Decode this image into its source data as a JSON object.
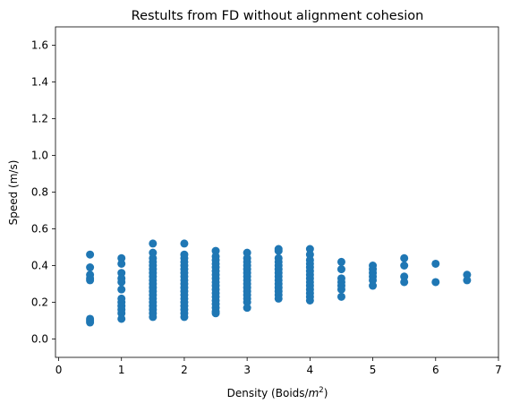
{
  "chart_data": {
    "type": "scatter",
    "title": "Restults from FD without alignment cohesion",
    "xlabel_prefix": "Density (Boids/",
    "xlabel_base": "m",
    "xlabel_exp": "2",
    "xlabel_suffix": ")",
    "ylabel": "Speed (m/s)",
    "xlim": [
      -0.05,
      7.0
    ],
    "ylim": [
      -0.1,
      1.7
    ],
    "xticks": [
      0,
      1,
      2,
      3,
      4,
      5,
      6,
      7
    ],
    "xtick_labels": [
      "0",
      "1",
      "2",
      "3",
      "4",
      "5",
      "6",
      "7"
    ],
    "yticks": [
      0.0,
      0.2,
      0.4,
      0.6,
      0.8,
      1.0,
      1.2,
      1.4,
      1.6
    ],
    "ytick_labels": [
      "0.0",
      "0.2",
      "0.4",
      "0.6",
      "0.8",
      "1.0",
      "1.2",
      "1.4",
      "1.6"
    ],
    "grid": false,
    "marker_color": "#1f77b4",
    "series": [
      {
        "points": [
          [
            0.5,
            0.46
          ],
          [
            0.5,
            0.39
          ],
          [
            0.5,
            0.35
          ],
          [
            0.5,
            0.33
          ],
          [
            0.5,
            0.32
          ],
          [
            0.5,
            0.11
          ],
          [
            0.5,
            0.1
          ],
          [
            0.5,
            0.09
          ],
          [
            1,
            0.44
          ],
          [
            1,
            0.41
          ],
          [
            1,
            0.36
          ],
          [
            1,
            0.33
          ],
          [
            1,
            0.31
          ],
          [
            1,
            0.27
          ],
          [
            1,
            0.22
          ],
          [
            1,
            0.2
          ],
          [
            1,
            0.18
          ],
          [
            1,
            0.16
          ],
          [
            1,
            0.14
          ],
          [
            1,
            0.11
          ],
          [
            1.5,
            0.52
          ],
          [
            1.5,
            0.47
          ],
          [
            1.5,
            0.44
          ],
          [
            1.5,
            0.42
          ],
          [
            1.5,
            0.4
          ],
          [
            1.5,
            0.38
          ],
          [
            1.5,
            0.36
          ],
          [
            1.5,
            0.34
          ],
          [
            1.5,
            0.32
          ],
          [
            1.5,
            0.3
          ],
          [
            1.5,
            0.28
          ],
          [
            1.5,
            0.26
          ],
          [
            1.5,
            0.24
          ],
          [
            1.5,
            0.22
          ],
          [
            1.5,
            0.2
          ],
          [
            1.5,
            0.18
          ],
          [
            1.5,
            0.16
          ],
          [
            1.5,
            0.14
          ],
          [
            1.5,
            0.12
          ],
          [
            2,
            0.52
          ],
          [
            2,
            0.46
          ],
          [
            2,
            0.44
          ],
          [
            2,
            0.42
          ],
          [
            2,
            0.4
          ],
          [
            2,
            0.38
          ],
          [
            2,
            0.36
          ],
          [
            2,
            0.34
          ],
          [
            2,
            0.32
          ],
          [
            2,
            0.3
          ],
          [
            2,
            0.28
          ],
          [
            2,
            0.26
          ],
          [
            2,
            0.24
          ],
          [
            2,
            0.22
          ],
          [
            2,
            0.2
          ],
          [
            2,
            0.18
          ],
          [
            2,
            0.16
          ],
          [
            2,
            0.14
          ],
          [
            2,
            0.12
          ],
          [
            2.5,
            0.48
          ],
          [
            2.5,
            0.45
          ],
          [
            2.5,
            0.43
          ],
          [
            2.5,
            0.41
          ],
          [
            2.5,
            0.39
          ],
          [
            2.5,
            0.37
          ],
          [
            2.5,
            0.35
          ],
          [
            2.5,
            0.33
          ],
          [
            2.5,
            0.31
          ],
          [
            2.5,
            0.29
          ],
          [
            2.5,
            0.27
          ],
          [
            2.5,
            0.25
          ],
          [
            2.5,
            0.23
          ],
          [
            2.5,
            0.21
          ],
          [
            2.5,
            0.19
          ],
          [
            2.5,
            0.17
          ],
          [
            2.5,
            0.15
          ],
          [
            2.5,
            0.14
          ],
          [
            3,
            0.47
          ],
          [
            3,
            0.44
          ],
          [
            3,
            0.42
          ],
          [
            3,
            0.4
          ],
          [
            3,
            0.38
          ],
          [
            3,
            0.36
          ],
          [
            3,
            0.34
          ],
          [
            3,
            0.32
          ],
          [
            3,
            0.3
          ],
          [
            3,
            0.28
          ],
          [
            3,
            0.26
          ],
          [
            3,
            0.24
          ],
          [
            3,
            0.22
          ],
          [
            3,
            0.2
          ],
          [
            3,
            0.17
          ],
          [
            3.5,
            0.49
          ],
          [
            3.5,
            0.48
          ],
          [
            3.5,
            0.44
          ],
          [
            3.5,
            0.42
          ],
          [
            3.5,
            0.4
          ],
          [
            3.5,
            0.38
          ],
          [
            3.5,
            0.36
          ],
          [
            3.5,
            0.34
          ],
          [
            3.5,
            0.32
          ],
          [
            3.5,
            0.3
          ],
          [
            3.5,
            0.28
          ],
          [
            3.5,
            0.26
          ],
          [
            3.5,
            0.24
          ],
          [
            3.5,
            0.22
          ],
          [
            4,
            0.49
          ],
          [
            4,
            0.46
          ],
          [
            4,
            0.43
          ],
          [
            4,
            0.41
          ],
          [
            4,
            0.39
          ],
          [
            4,
            0.37
          ],
          [
            4,
            0.35
          ],
          [
            4,
            0.33
          ],
          [
            4,
            0.31
          ],
          [
            4,
            0.29
          ],
          [
            4,
            0.27
          ],
          [
            4,
            0.25
          ],
          [
            4,
            0.23
          ],
          [
            4,
            0.21
          ],
          [
            4.5,
            0.42
          ],
          [
            4.5,
            0.38
          ],
          [
            4.5,
            0.33
          ],
          [
            4.5,
            0.31
          ],
          [
            4.5,
            0.29
          ],
          [
            4.5,
            0.27
          ],
          [
            4.5,
            0.23
          ],
          [
            5,
            0.4
          ],
          [
            5,
            0.38
          ],
          [
            5,
            0.36
          ],
          [
            5,
            0.34
          ],
          [
            5,
            0.32
          ],
          [
            5,
            0.29
          ],
          [
            5.5,
            0.44
          ],
          [
            5.5,
            0.4
          ],
          [
            5.5,
            0.34
          ],
          [
            5.5,
            0.31
          ],
          [
            6,
            0.41
          ],
          [
            6,
            0.31
          ],
          [
            6.5,
            0.35
          ],
          [
            6.5,
            0.32
          ]
        ]
      }
    ]
  }
}
